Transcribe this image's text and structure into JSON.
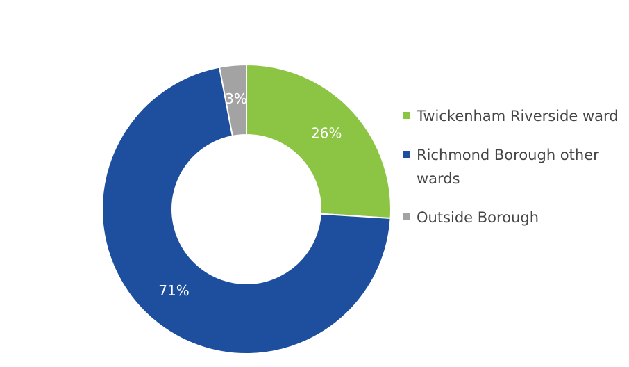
{
  "chart_data": {
    "type": "pie",
    "variant": "donut",
    "title": "",
    "legend_position": "right",
    "slices": [
      {
        "label": "Twickenham Riverside ward",
        "value": 26,
        "value_label": "26%",
        "color": "#8cc543"
      },
      {
        "label": "Richmond Borough other wards",
        "value": 71,
        "value_label": "71%",
        "color": "#1d4f9e"
      },
      {
        "label": "Outside Borough",
        "value": 3,
        "value_label": "3%",
        "color": "#a3a3a3"
      }
    ]
  }
}
